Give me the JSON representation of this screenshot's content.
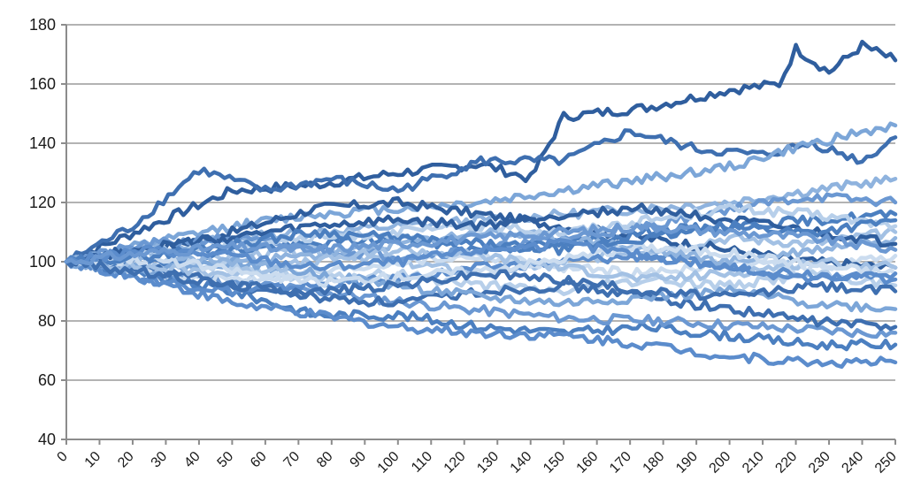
{
  "chart_data": {
    "type": "line",
    "title": "",
    "xlabel": "",
    "ylabel": "",
    "xlim": [
      0,
      250
    ],
    "ylim": [
      40,
      180
    ],
    "x_ticks": [
      "0",
      "10",
      "20",
      "30",
      "40",
      "50",
      "60",
      "70",
      "80",
      "90",
      "100",
      "110",
      "120",
      "130",
      "140",
      "150",
      "160",
      "170",
      "180",
      "190",
      "200",
      "210",
      "220",
      "230",
      "240",
      "250"
    ],
    "y_ticks": [
      "40",
      "60",
      "80",
      "100",
      "120",
      "140",
      "160",
      "180"
    ],
    "grid": "horizontal",
    "legend": "none",
    "colors": [
      "#2f5e9e",
      "#3e6fb0",
      "#4b7fc0",
      "#5b8ccc",
      "#6b98d2",
      "#7ca6d8",
      "#8fb3de",
      "#a3c1e4",
      "#b7cfea",
      "#cbdcef"
    ],
    "series": [
      {
        "x": [
          0,
          25,
          50,
          75,
          100,
          125,
          140,
          150,
          175,
          200,
          215,
          220,
          230,
          240,
          250
        ],
        "values": [
          100,
          112,
          124,
          126,
          130,
          133,
          128,
          149,
          152,
          158,
          160,
          172,
          164,
          173,
          168
        ]
      },
      {
        "x": [
          0,
          20,
          40,
          60,
          80,
          100,
          125,
          150,
          170,
          190,
          210,
          225,
          240,
          250
        ],
        "values": [
          100,
          112,
          131,
          124,
          128,
          124,
          134,
          134,
          144,
          138,
          136,
          140,
          134,
          142
        ]
      },
      {
        "x": [
          0,
          25,
          50,
          75,
          100,
          125,
          150,
          175,
          200,
          225,
          250
        ],
        "values": [
          100,
          95,
          90,
          82,
          82,
          78,
          76,
          78,
          75,
          72,
          72
        ]
      },
      {
        "x": [
          0,
          25,
          50,
          75,
          100,
          125,
          150,
          175,
          200,
          225,
          250
        ],
        "values": [
          100,
          94,
          86,
          82,
          78,
          76,
          75,
          72,
          68,
          66,
          66
        ]
      },
      {
        "x": [
          0,
          30,
          60,
          90,
          120,
          150,
          180,
          210,
          240,
          250
        ],
        "values": [
          100,
          96,
          92,
          88,
          84,
          81,
          80,
          78,
          76,
          76
        ]
      },
      {
        "x": [
          0,
          25,
          50,
          75,
          100,
          125,
          150,
          175,
          200,
          225,
          250
        ],
        "values": [
          100,
          106,
          112,
          116,
          118,
          120,
          124,
          128,
          132,
          140,
          146
        ]
      },
      {
        "x": [
          0,
          25,
          50,
          75,
          100,
          125,
          150,
          175,
          200,
          225,
          250
        ],
        "values": [
          100,
          104,
          108,
          110,
          112,
          114,
          116,
          118,
          120,
          124,
          128
        ]
      },
      {
        "x": [
          0,
          25,
          50,
          75,
          100,
          125,
          150,
          175,
          200,
          225,
          250
        ],
        "values": [
          100,
          98,
          102,
          104,
          100,
          96,
          100,
          104,
          108,
          106,
          110
        ]
      },
      {
        "x": [
          0,
          25,
          50,
          75,
          100,
          125,
          150,
          175,
          200,
          225,
          250
        ],
        "values": [
          100,
          102,
          98,
          94,
          96,
          92,
          90,
          94,
          92,
          96,
          92
        ]
      },
      {
        "x": [
          0,
          25,
          50,
          75,
          100,
          125,
          150,
          175,
          200,
          225,
          250
        ],
        "values": [
          100,
          96,
          94,
          96,
          100,
          102,
          98,
          96,
          100,
          98,
          102
        ]
      },
      {
        "x": [
          0,
          25,
          50,
          75,
          100,
          125,
          150,
          175,
          200,
          225,
          250
        ],
        "values": [
          100,
          104,
          110,
          118,
          120,
          116,
          112,
          108,
          104,
          100,
          98
        ]
      },
      {
        "x": [
          0,
          25,
          50,
          75,
          100,
          125,
          150,
          175,
          200,
          225,
          250
        ],
        "values": [
          100,
          98,
          92,
          88,
          86,
          90,
          92,
          88,
          84,
          80,
          78
        ]
      },
      {
        "x": [
          0,
          25,
          50,
          75,
          100,
          125,
          150,
          175,
          200,
          225,
          250
        ],
        "values": [
          100,
          100,
          104,
          106,
          108,
          104,
          106,
          110,
          112,
          114,
          116
        ]
      },
      {
        "x": [
          0,
          25,
          50,
          75,
          100,
          125,
          150,
          175,
          200,
          225,
          250
        ],
        "values": [
          100,
          94,
          90,
          92,
          94,
          98,
          100,
          102,
          98,
          96,
          94
        ]
      },
      {
        "x": [
          0,
          25,
          50,
          75,
          100,
          125,
          150,
          175,
          200,
          225,
          250
        ],
        "values": [
          100,
          106,
          108,
          104,
          102,
          104,
          108,
          112,
          118,
          122,
          120
        ]
      },
      {
        "x": [
          0,
          25,
          50,
          75,
          100,
          125,
          150,
          175,
          200,
          225,
          250
        ],
        "values": [
          100,
          97,
          100,
          96,
          92,
          88,
          86,
          88,
          90,
          86,
          84
        ]
      },
      {
        "x": [
          0,
          25,
          50,
          75,
          100,
          125,
          150,
          175,
          200,
          225,
          250
        ],
        "values": [
          100,
          102,
          100,
          102,
          106,
          110,
          108,
          104,
          100,
          104,
          108
        ]
      },
      {
        "x": [
          0,
          25,
          50,
          75,
          100,
          125,
          150,
          175,
          200,
          225,
          250
        ],
        "values": [
          100,
          98,
          96,
          100,
          104,
          102,
          98,
          94,
          96,
          100,
          98
        ]
      },
      {
        "x": [
          0,
          25,
          50,
          75,
          100,
          125,
          150,
          175,
          200,
          225,
          250
        ],
        "values": [
          100,
          103,
          106,
          108,
          110,
          112,
          110,
          114,
          118,
          116,
          112
        ]
      },
      {
        "x": [
          0,
          25,
          50,
          75,
          100,
          125,
          150,
          175,
          200,
          225,
          250
        ],
        "values": [
          100,
          101,
          97,
          93,
          95,
          97,
          101,
          105,
          103,
          99,
          96
        ]
      },
      {
        "x": [
          0,
          25,
          50,
          75,
          100,
          125,
          150,
          175,
          200,
          225,
          250
        ],
        "values": [
          100,
          105,
          108,
          112,
          114,
          112,
          116,
          118,
          114,
          110,
          106
        ]
      },
      {
        "x": [
          0,
          25,
          50,
          75,
          100,
          125,
          150,
          175,
          200,
          225,
          250
        ],
        "values": [
          100,
          96,
          92,
          90,
          92,
          96,
          94,
          90,
          88,
          92,
          90
        ]
      },
      {
        "x": [
          0,
          25,
          50,
          75,
          100,
          125,
          150,
          175,
          200,
          225,
          250
        ],
        "values": [
          100,
          102,
          106,
          110,
          108,
          106,
          104,
          108,
          112,
          110,
          114
        ]
      },
      {
        "x": [
          0,
          25,
          50,
          75,
          100,
          125,
          150,
          175,
          200,
          225,
          250
        ],
        "values": [
          100,
          104,
          102,
          98,
          100,
          104,
          106,
          102,
          98,
          94,
          96
        ]
      },
      {
        "x": [
          0,
          25,
          50,
          75,
          100,
          125,
          150,
          175,
          200,
          225,
          250
        ],
        "values": [
          100,
          103,
          105,
          104,
          106,
          108,
          110,
          112,
          110,
          108,
          104
        ]
      }
    ]
  }
}
